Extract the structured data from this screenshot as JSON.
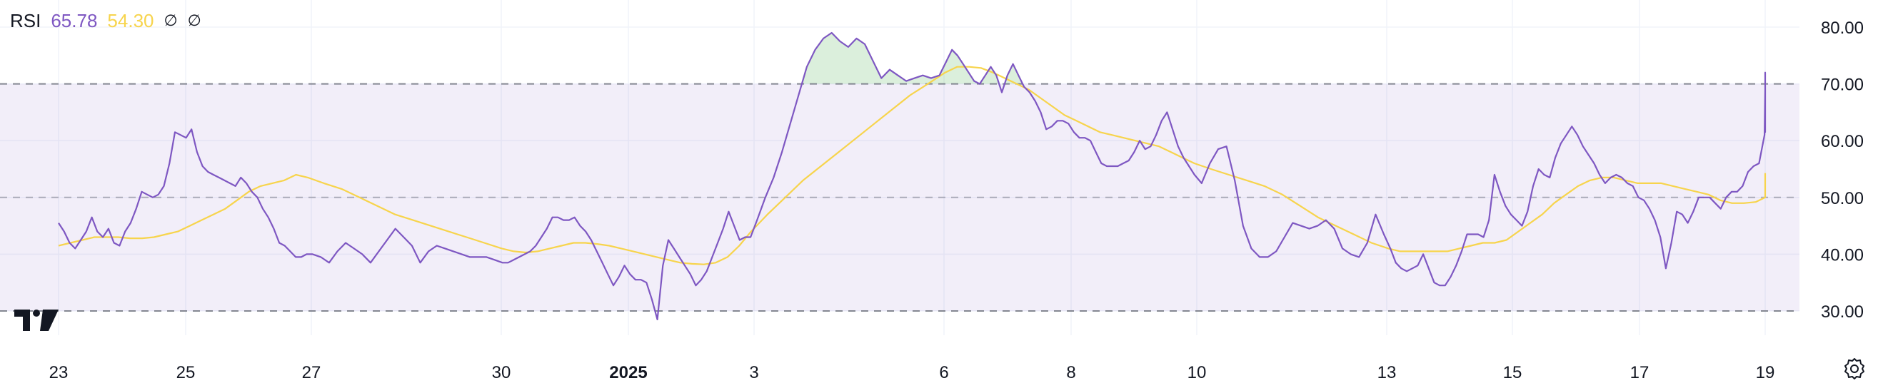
{
  "legend": {
    "name": "RSI",
    "value_rsi": "65.78",
    "value_ma": "54.30",
    "hidden_1": "∅",
    "hidden_2": "∅"
  },
  "chart_data": {
    "type": "line",
    "title": "",
    "xlabel": "",
    "ylabel": "",
    "ylim": [
      27,
      82
    ],
    "grid": true,
    "y_ticks": [
      "80.00",
      "70.00",
      "60.00",
      "50.00",
      "40.00",
      "30.00"
    ],
    "x_ticks": [
      "23",
      "25",
      "27",
      "30",
      "2025",
      "3",
      "6",
      "8",
      "10",
      "13",
      "15",
      "17",
      "19"
    ],
    "x_ticks_bold": [
      "2025"
    ],
    "bands": {
      "upper": 70,
      "middle": 50,
      "lower": 30
    },
    "colors": {
      "rsi": "#7e57c2",
      "ma": "#f7d44c",
      "band_fill": "#7e57c21a",
      "overbought_fill": "#4caf5033",
      "grid": "#f0f3fa",
      "dashed": "#787b86"
    },
    "series": [
      {
        "key": "rsi",
        "values": [
          45.5,
          44,
          42,
          41,
          42.5,
          44,
          46.5,
          44,
          43,
          44.5,
          42,
          41.5,
          44,
          45.5,
          48,
          51,
          50.5,
          50,
          50.5,
          52,
          56,
          61.5,
          61,
          60.5,
          62,
          58,
          55.5,
          54.5,
          54,
          53.5,
          53,
          52.5,
          52,
          53.5,
          52.5,
          51,
          50,
          48,
          46.5,
          44.5,
          42,
          41.5,
          40.5,
          39.5,
          39.5,
          40,
          40,
          39.5,
          38.5,
          40.5,
          42,
          41,
          40,
          38.5,
          40.5,
          42.5,
          44.5,
          43,
          41.5,
          38.5,
          40.5,
          41.5,
          41,
          40.5,
          40,
          39.5,
          39.5,
          39.5,
          39,
          38.5,
          38.5,
          39,
          39.5,
          40,
          40.5,
          41.5,
          43,
          44.5,
          46.5,
          46.5,
          46,
          46,
          46.5,
          45,
          44,
          42.5,
          40.5,
          38.5,
          36.5,
          34.5,
          36,
          38,
          36.5,
          35.5,
          35.5,
          35,
          32,
          28.5,
          38,
          42.5,
          41,
          39.5,
          38,
          36.5,
          34.5,
          35.5,
          37,
          39.5,
          42,
          44.5,
          47.5,
          45,
          42.5,
          43,
          43,
          46,
          50,
          53.5,
          58,
          63,
          68,
          73,
          76,
          78,
          79,
          77.5,
          76.5,
          78,
          77,
          74,
          71,
          72.5,
          71.5,
          70.5,
          71,
          71.5,
          71,
          71.5,
          74,
          76,
          75,
          73.5,
          72,
          70.5,
          70,
          71.5,
          73,
          71.5,
          68.5,
          71.5,
          73.5,
          71.5,
          69.5,
          68.5,
          67,
          65,
          62,
          62.5,
          63.5,
          63.5,
          63,
          61.5,
          60.5,
          60.5,
          60,
          58,
          56,
          55.5,
          55.5,
          55.5,
          56,
          56.5,
          58,
          60,
          58.5,
          59,
          61,
          63.5,
          65,
          62,
          59,
          57,
          55.5,
          54,
          52.5,
          56,
          58.5,
          59,
          53,
          45,
          41,
          39.5,
          39.5,
          40.5,
          43,
          45.5,
          45,
          44.5,
          45,
          46,
          44.5,
          41,
          40,
          39.5,
          42,
          47,
          43.5,
          41,
          38.5,
          37.5,
          37,
          37.5,
          38,
          40,
          37.5,
          35,
          34.5,
          34.5,
          36,
          38,
          40.5,
          43.5,
          43.5,
          43.5,
          43,
          46,
          54,
          51,
          48.5,
          47,
          46,
          45,
          47.5,
          52,
          55,
          54,
          53.5,
          57,
          59.5,
          61,
          62.5,
          61,
          59,
          57.5,
          56,
          54,
          52.5,
          53.5,
          54,
          53.5,
          52.5,
          52,
          50,
          49.5,
          48,
          46,
          43,
          37.5,
          42,
          47.5,
          47,
          45.5,
          47.5,
          50,
          50,
          50,
          49,
          48,
          50,
          51,
          51,
          52,
          54.5,
          55.5,
          56,
          61,
          69,
          70.5,
          72,
          68,
          61.5,
          64,
          65.78
        ],
        "t_start": 0,
        "t_end": 12.3
      },
      {
        "key": "ma",
        "values": [
          41.5,
          42,
          42.5,
          43,
          43,
          43,
          42.8,
          42.8,
          43,
          43.5,
          44,
          45,
          46,
          47,
          48,
          49.5,
          51,
          52,
          52.5,
          53,
          54,
          53.5,
          52.5,
          51.5,
          50,
          48.5,
          47,
          46,
          45,
          44,
          43,
          42,
          41,
          40.5,
          40.3,
          40.5,
          41,
          41.5,
          42,
          42,
          41.8,
          41.5,
          41,
          40.5,
          40,
          39.5,
          39,
          38.5,
          38.3,
          38.2,
          38.5,
          39.5,
          41.5,
          44,
          47,
          50,
          53,
          55.5,
          58,
          60.5,
          63,
          65.5,
          68,
          70,
          72,
          73,
          73,
          72.8,
          72,
          71,
          70,
          69,
          67.5,
          66,
          64.5,
          63.5,
          62.5,
          61.5,
          61,
          60.5,
          60,
          59.5,
          59,
          58,
          57,
          56,
          55,
          54,
          53,
          52,
          50.5,
          48.5,
          46.5,
          45,
          43.5,
          42,
          41,
          40.5,
          40.5,
          40.5,
          40.5,
          40.5,
          41,
          41.5,
          42,
          42,
          42.5,
          44,
          45.5,
          47,
          49,
          50.5,
          52,
          53,
          53.5,
          53.5,
          53,
          52.5,
          52.5,
          52.5,
          52,
          51.5,
          51,
          50.5,
          49.5,
          49,
          49,
          49.2,
          50,
          51.5,
          52.5,
          54.3
        ],
        "t_start": 0,
        "t_end": 12.3
      }
    ]
  }
}
